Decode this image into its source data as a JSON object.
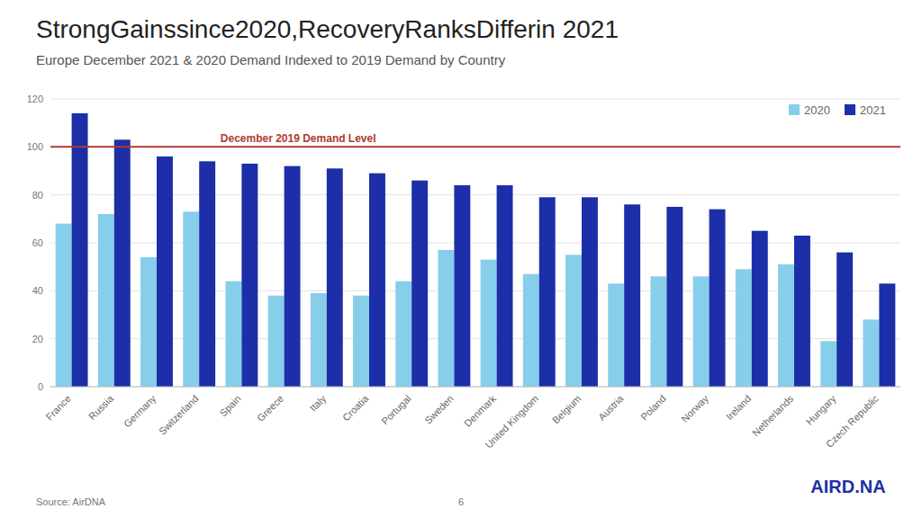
{
  "chart_data": {
    "type": "bar",
    "title": "StrongGainssince2020,RecoveryRanksDifferin 2021",
    "subtitle": "Europe December 2021 & 2020 Demand Indexed to 2019 Demand by Country",
    "categories": [
      "France",
      "Russia",
      "Germany",
      "Switzerland",
      "Spain",
      "Greece",
      "Italy",
      "Croatia",
      "Portugal",
      "Sweden",
      "Denmark",
      "United Kingdom",
      "Belgium",
      "Austria",
      "Poland",
      "Norway",
      "Ireland",
      "Netherlands",
      "Hungary",
      "Czech Republic"
    ],
    "series": [
      {
        "name": "2020",
        "color": "#87CEEB",
        "values": [
          68,
          72,
          54,
          73,
          44,
          38,
          39,
          38,
          44,
          57,
          53,
          47,
          55,
          43,
          46,
          46,
          49,
          51,
          19,
          28
        ]
      },
      {
        "name": "2021",
        "color": "#1C2FA8",
        "values": [
          114,
          103,
          96,
          94,
          93,
          92,
          91,
          89,
          86,
          84,
          84,
          79,
          79,
          76,
          75,
          74,
          65,
          63,
          56,
          43
        ]
      }
    ],
    "ylim": [
      0,
      120
    ],
    "yticks": [
      0,
      20,
      40,
      60,
      80,
      100,
      120
    ],
    "grid": true,
    "legend": "upper right",
    "annotations": [
      {
        "text": "December 2019 Demand Level",
        "y": 100,
        "color": "#B03A2E"
      },
      {
        "text": "6"
      },
      {
        "text": "AIRD.NA",
        "color": "#1C2FA8"
      }
    ],
    "source": "Source: AirDNA"
  }
}
